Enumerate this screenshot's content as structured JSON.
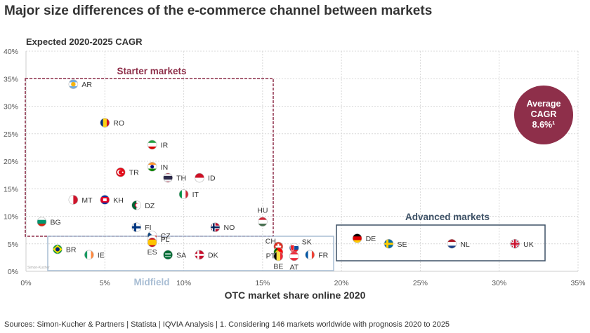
{
  "title": "Major size differences of the e-commerce channel between markets",
  "source": "Sources: Simon-Kucher & Partners | Statista | IQVIA Analysis | 1. Considering 146 markets worldwide with prognosis 2020 to 2025",
  "watermark": "Simon-Kucher",
  "chart_data": {
    "type": "scatter",
    "title": "Major size differences of the e-commerce channel between markets",
    "xlabel": "OTC market share online 2020",
    "ylabel": "Expected 2020-2025 CAGR",
    "xlim": [
      0,
      35
    ],
    "ylim": [
      0,
      40
    ],
    "xticks": [
      "0%",
      "5%",
      "10%",
      "15%",
      "20%",
      "25%",
      "30%",
      "35%"
    ],
    "yticks": [
      "0%",
      "5%",
      "10%",
      "15%",
      "20%",
      "25%",
      "30%",
      "35%",
      "40%"
    ],
    "grid": true,
    "points": [
      {
        "label": "AR",
        "x": 3.0,
        "y": 34.0
      },
      {
        "label": "RO",
        "x": 5.0,
        "y": 27.0
      },
      {
        "label": "IR",
        "x": 8.0,
        "y": 23.0
      },
      {
        "label": "IN",
        "x": 8.0,
        "y": 19.0
      },
      {
        "label": "TR",
        "x": 6.0,
        "y": 18.0
      },
      {
        "label": "TH",
        "x": 9.0,
        "y": 17.0
      },
      {
        "label": "ID",
        "x": 11.0,
        "y": 17.0
      },
      {
        "label": "IT",
        "x": 10.0,
        "y": 14.0
      },
      {
        "label": "MT",
        "x": 3.0,
        "y": 13.0
      },
      {
        "label": "KH",
        "x": 5.0,
        "y": 13.0
      },
      {
        "label": "DZ",
        "x": 7.0,
        "y": 12.0
      },
      {
        "label": "BG",
        "x": 1.0,
        "y": 9.0
      },
      {
        "label": "HU",
        "x": 15.0,
        "y": 9.0
      },
      {
        "label": "FI",
        "x": 7.0,
        "y": 8.0
      },
      {
        "label": "NO",
        "x": 12.0,
        "y": 8.0
      },
      {
        "label": "CZ",
        "x": 8.0,
        "y": 7.0
      },
      {
        "label": "PL",
        "x": 8.0,
        "y": 6.0
      },
      {
        "label": "ES",
        "x": 8.0,
        "y": 5.0
      },
      {
        "label": "BR",
        "x": 2.0,
        "y": 4.0
      },
      {
        "label": "IE",
        "x": 4.0,
        "y": 3.0
      },
      {
        "label": "SA",
        "x": 9.0,
        "y": 3.0
      },
      {
        "label": "DK",
        "x": 11.0,
        "y": 3.0
      },
      {
        "label": "CH",
        "x": 16.0,
        "y": 4.5
      },
      {
        "label": "PT",
        "x": 16.0,
        "y": 4.0
      },
      {
        "label": "BE",
        "x": 16.0,
        "y": 3.5
      },
      {
        "label": "SK",
        "x": 17.0,
        "y": 4.0
      },
      {
        "label": "AT",
        "x": 17.0,
        "y": 3.0
      },
      {
        "label": "FR",
        "x": 18.0,
        "y": 3.0
      },
      {
        "label": "DE",
        "x": 21.0,
        "y": 6.0
      },
      {
        "label": "SE",
        "x": 23.0,
        "y": 5.0
      },
      {
        "label": "NL",
        "x": 27.0,
        "y": 5.0
      },
      {
        "label": "UK",
        "x": 31.0,
        "y": 5.0
      }
    ],
    "annotations": [
      {
        "text": "Starter markets",
        "color": "#8e2f4a"
      },
      {
        "text": "Midfield",
        "color": "#a9bed4"
      },
      {
        "text": "Advanced markets",
        "color": "#3d5166"
      }
    ],
    "badge": {
      "lines": [
        "Average",
        "CAGR",
        "8.6%¹"
      ],
      "color": "#8e2f4a"
    }
  }
}
